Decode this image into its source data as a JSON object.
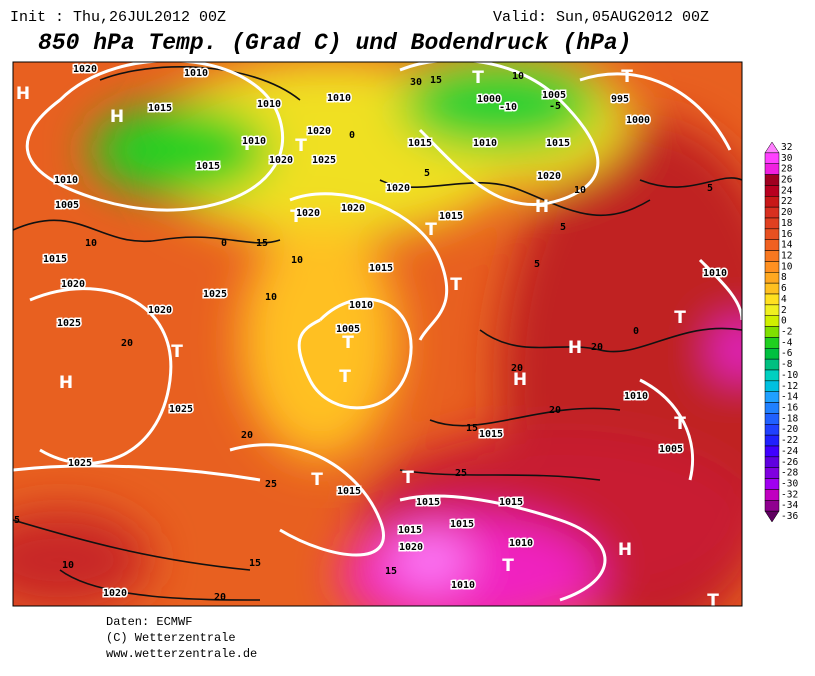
{
  "header": {
    "init": "Init : Thu,26JUL2012 00Z",
    "valid": "Valid: Sun,05AUG2012 00Z",
    "title": "850 hPa Temp. (Grad C) und Bodendruck (hPa)"
  },
  "legend": {
    "ticks": [
      32,
      30,
      28,
      26,
      24,
      22,
      20,
      18,
      16,
      14,
      12,
      10,
      8,
      6,
      4,
      2,
      0,
      -2,
      -4,
      -6,
      -8,
      -10,
      -12,
      -14,
      -16,
      -18,
      -20,
      -22,
      -24,
      -26,
      -28,
      -30,
      -32,
      -34,
      -36
    ],
    "colors": [
      "#ff80ff",
      "#ff40ff",
      "#f020e0",
      "#a00020",
      "#b80020",
      "#c81818",
      "#d83020",
      "#e04020",
      "#e85020",
      "#f06020",
      "#f87820",
      "#ff9020",
      "#ffa820",
      "#ffc020",
      "#ffe020",
      "#f0f020",
      "#d0f000",
      "#80e000",
      "#20d020",
      "#00c040",
      "#00c080",
      "#00d0c0",
      "#00c0e0",
      "#20a0ff",
      "#2080ff",
      "#2060ff",
      "#2040ff",
      "#2020ff",
      "#4000ff",
      "#6000e0",
      "#8000e0",
      "#a000f0",
      "#c000c0",
      "#900090",
      "#600060"
    ]
  },
  "map_labels": [
    "H",
    "H",
    "H",
    "H",
    "H",
    "H",
    "H",
    "T",
    "T",
    "T",
    "T",
    "T",
    "T",
    "T",
    "T",
    "T",
    "T",
    "T",
    "T",
    "T",
    "T",
    "T",
    "T",
    "1010",
    "1010",
    "1010",
    "1020",
    "1025",
    "1010",
    "1020",
    "1015",
    "1010",
    "1005",
    "1015",
    "1020",
    "1025",
    "1020",
    "1025",
    "1025",
    "1025",
    "1020",
    "1010",
    "1005",
    "1015",
    "1015",
    "1020",
    "1020",
    "1020",
    "1015",
    "1010",
    "1000",
    "1005",
    "1015",
    "1020",
    "995",
    "1000",
    "1010",
    "1010",
    "1005",
    "1015",
    "1015",
    "1015",
    "1015",
    "1015",
    "1015",
    "1020",
    "1010",
    "1010",
    "1020",
    "1015",
    "10",
    "0",
    "15",
    "10",
    "10",
    "5",
    "5",
    "5",
    "10",
    "5",
    "0",
    "20",
    "20",
    "20",
    "15",
    "25",
    "20",
    "25",
    "5",
    "10",
    "15",
    "20",
    "15",
    "20",
    "30",
    "15",
    "10",
    "-10",
    "-5",
    "0",
    "-5",
    "10"
  ],
  "footer": {
    "source": "Daten: ECMWF",
    "copyright": "(C) Wetterzentrale",
    "url": "www.wetterzentrale.de"
  }
}
